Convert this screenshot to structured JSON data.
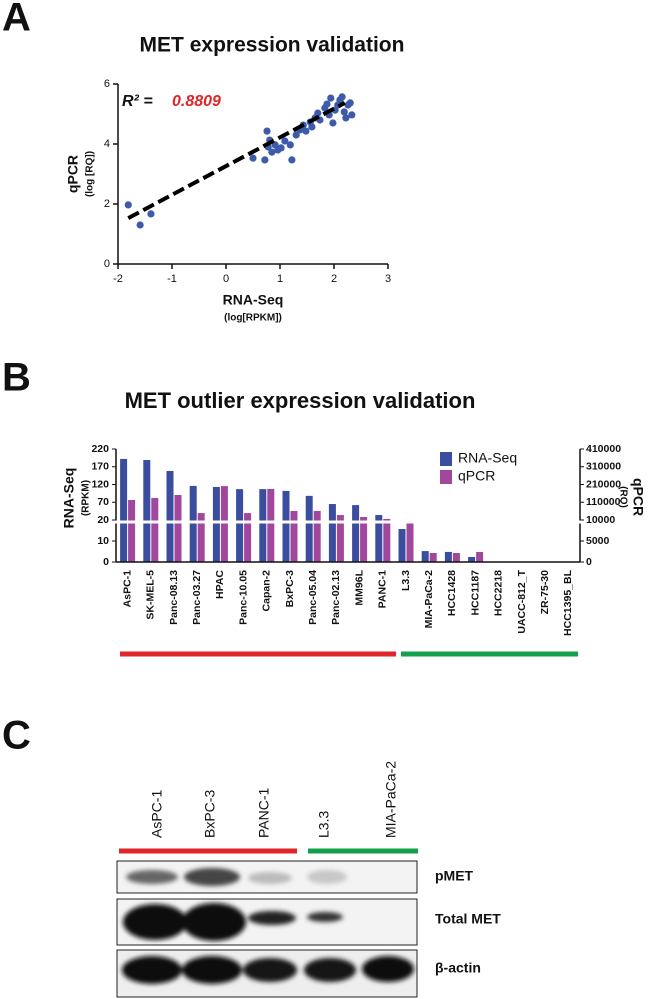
{
  "panel_labels": [
    "A",
    "B",
    "C"
  ],
  "chart_data": [
    {
      "type": "scatter",
      "title": "MET expression validation",
      "annotation": "R² =",
      "r2": 0.8809,
      "x_label": "RNA-Seq",
      "x_sublabel": "(log[RPKM])",
      "y_label": "qPCR",
      "y_sublabel": "(log [RQ])",
      "color": "#3d5ba9",
      "x": [
        -1.81,
        -1.59,
        -1.39,
        0.5,
        0.72,
        0.76,
        0.81,
        0.78,
        0.85,
        0.91,
        0.96,
        1.02,
        1.09,
        1.19,
        1.22,
        1.3,
        1.37,
        1.43,
        1.48,
        1.56,
        1.59,
        1.65,
        1.7,
        1.74,
        1.83,
        1.87,
        1.91,
        1.94,
        1.98,
        2.02,
        2.07,
        2.11,
        2.15,
        2.19,
        2.22,
        2.26,
        2.3,
        2.33
      ],
      "y": [
        1.97,
        1.3,
        1.67,
        3.53,
        3.47,
        4.43,
        4.13,
        3.9,
        3.73,
        3.97,
        3.8,
        3.87,
        4.1,
        3.97,
        3.47,
        4.3,
        4.47,
        4.63,
        4.43,
        4.73,
        4.57,
        4.87,
        5.03,
        4.8,
        5.2,
        5.33,
        4.97,
        5.53,
        4.7,
        5.13,
        5.3,
        5.47,
        5.57,
        5.07,
        4.87,
        5.3,
        5.37,
        4.97
      ],
      "trend": {
        "x": [
          -1.81,
          2.2
        ],
        "y": [
          1.53,
          5.37
        ]
      },
      "xlim": [
        -2,
        3
      ],
      "xticks": [
        -2,
        -1,
        0,
        1,
        2,
        3
      ],
      "ylim": [
        0,
        6
      ],
      "yticks": [
        0,
        2,
        4,
        6
      ]
    },
    {
      "type": "bar",
      "title": "MET outlier expression validation",
      "y_label": "RNA-Seq",
      "y_sublabel": "(RPKM)",
      "y2_label": "qPCR",
      "y2_sublabel": "(RQ)",
      "categories": [
        "AsPC-1",
        "SK-MEL-5",
        "Panc-08.13",
        "Panc-03.27",
        "HPAC",
        "Panc-10.05",
        "Capan-2",
        "BxPC-3",
        "Panc-05.04",
        "Panc-02.13",
        "MM96L",
        "PANC-1",
        "L3.3",
        "MIA-PaCa-2",
        "HCC1428",
        "HCC1187",
        "HCC2218",
        "UACC-812_T",
        "ZR-75-30",
        "HCC1395_BL"
      ],
      "series": [
        {
          "name": "RNA-Seq",
          "color": "#3b4d9f",
          "values": [
            192,
            189,
            158,
            116,
            113,
            107,
            107,
            102,
            88,
            65,
            62,
            34,
            15.7,
            5.2,
            4.8,
            2.4,
            0,
            0,
            0,
            0
          ]
        },
        {
          "name": "qPCR",
          "color": "#a1479c",
          "axis": "y2",
          "values": [
            122700,
            134000,
            151000,
            49000,
            201000,
            49000,
            185000,
            61000,
            61000,
            38000,
            27000,
            16000,
            9300,
            2140,
            2140,
            2380,
            0,
            0,
            0,
            0
          ]
        }
      ],
      "ylim": [
        0,
        220
      ],
      "ybreak": 20,
      "yticks": [
        0,
        10,
        20,
        70,
        120,
        170,
        220
      ],
      "y2lim": [
        0,
        410000
      ],
      "y2break": 10000,
      "y2ticks": [
        0,
        5000,
        10000,
        110000,
        210000,
        310000,
        410000
      ]
    }
  ],
  "blot": {
    "lanes": [
      "AsPC-1",
      "BxPC-3",
      "PANC-1",
      "L3.3",
      "MIA-PaCa-2"
    ],
    "rows": [
      "pMET",
      "Total MET",
      "β-actin"
    ]
  }
}
